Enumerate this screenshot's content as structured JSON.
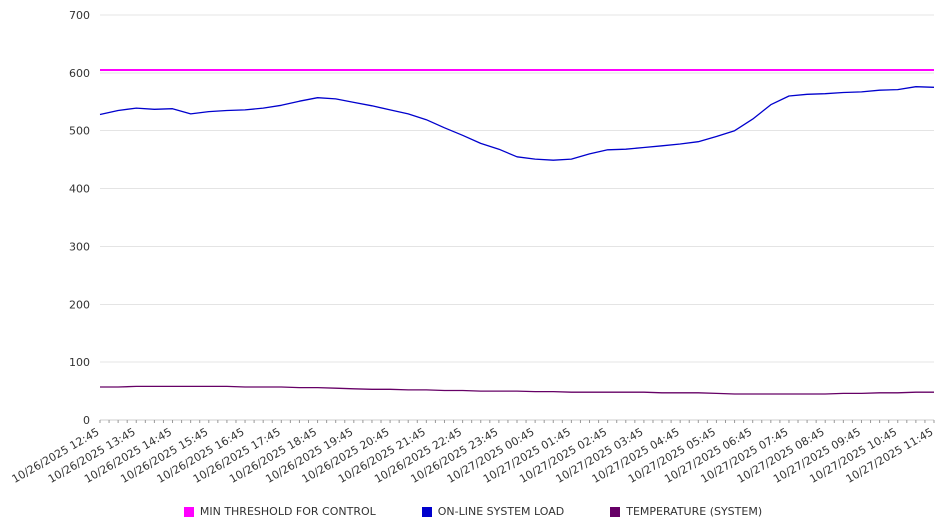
{
  "chart_data": {
    "type": "line",
    "title": "",
    "xlabel": "",
    "ylabel": "",
    "ylim": [
      0,
      700
    ],
    "y_tick_step": 100,
    "grid": "horizontal",
    "legend_position": "bottom",
    "axis_color": "#cccccc",
    "grid_color": "#e4e4e4",
    "tick_color": "#999999",
    "label_color": "#333333",
    "x_minor_ticks_per_interval": 4,
    "x_labels": [
      "10/26/2025 12:45",
      "10/26/2025 13:45",
      "10/26/2025 14:45",
      "10/26/2025 15:45",
      "10/26/2025 16:45",
      "10/26/2025 17:45",
      "10/26/2025 18:45",
      "10/26/2025 19:45",
      "10/26/2025 20:45",
      "10/26/2025 21:45",
      "10/26/2025 22:45",
      "10/26/2025 23:45",
      "10/27/2025 00:45",
      "10/27/2025 01:45",
      "10/27/2025 02:45",
      "10/27/2025 03:45",
      "10/27/2025 04:45",
      "10/27/2025 05:45",
      "10/27/2025 06:45",
      "10/27/2025 07:45",
      "10/27/2025 08:45",
      "10/27/2025 09:45",
      "10/27/2025 10:45",
      "10/27/2025 11:45"
    ],
    "series": [
      {
        "name": "MIN THRESHOLD FOR CONTROL",
        "color": "#ff00ff",
        "type": "hline",
        "value": 605
      },
      {
        "name": "ON-LINE SYSTEM LOAD",
        "color": "#0000cd",
        "type": "line",
        "values": [
          528,
          535,
          539,
          537,
          538,
          529,
          533,
          535,
          536,
          539,
          544,
          551,
          557,
          555,
          549,
          543,
          536,
          529,
          519,
          505,
          492,
          478,
          468,
          455,
          451,
          449,
          451,
          460,
          467,
          468,
          471,
          474,
          477,
          481,
          490,
          500,
          520,
          545,
          560,
          563,
          564,
          566,
          567,
          570,
          571,
          576,
          575
        ]
      },
      {
        "name": "TEMPERATURE (SYSTEM)",
        "color": "#660066",
        "type": "line",
        "values": [
          57,
          57,
          58,
          58,
          58,
          58,
          58,
          58,
          57,
          57,
          57,
          56,
          56,
          55,
          54,
          53,
          53,
          52,
          52,
          51,
          51,
          50,
          50,
          50,
          49,
          49,
          48,
          48,
          48,
          48,
          48,
          47,
          47,
          47,
          46,
          45,
          45,
          45,
          45,
          45,
          45,
          46,
          46,
          47,
          47,
          48,
          48
        ]
      }
    ]
  }
}
